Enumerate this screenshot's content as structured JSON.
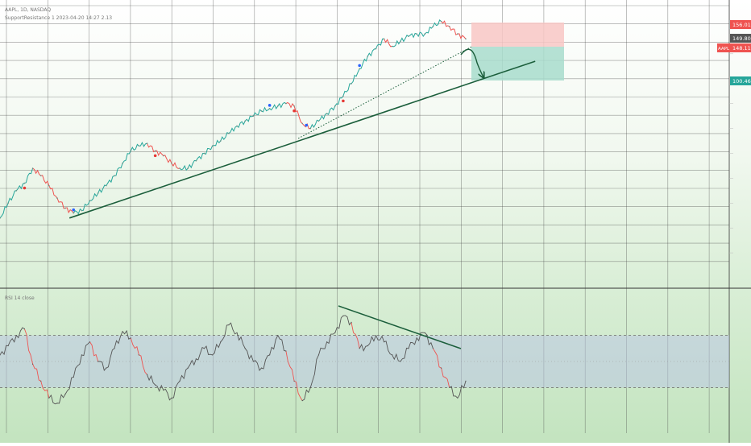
{
  "colors": {
    "up": "#26a69a",
    "down": "#ef5350",
    "trendline": "#1b5e3b",
    "stop_zone": "#f8c7c4",
    "target_zone": "#a8dccd",
    "rsi_line": "#555555",
    "rsi_band": "#b9c3e6",
    "signal_blue": "#2962ff",
    "signal_red": "#e53935"
  },
  "header": {
    "symbol_line": "AAPL, 1D, NASDAQ",
    "indicator_line": "SupportResistance 1 2023-04-20 14:27 2.13"
  },
  "price_labels": {
    "stop": "156.01",
    "entry": "149.80",
    "current_symbol": "AAPL",
    "current": "148.11",
    "target": "100.46"
  },
  "rsi_header": "RSI 14 close",
  "chart_data": [
    {
      "type": "line",
      "panel": "price",
      "ylim": [
        60,
        170
      ],
      "x": [
        0,
        10,
        20,
        30,
        40,
        50,
        60,
        70,
        80,
        90,
        100,
        110,
        120,
        130,
        140,
        150,
        160,
        170,
        180,
        190,
        200,
        210,
        220,
        230,
        240,
        250,
        260,
        270,
        280,
        290,
        300,
        310,
        320,
        330,
        340,
        350,
        360,
        370,
        380,
        390,
        400,
        410,
        420,
        430,
        440,
        450,
        460,
        470,
        480,
        490,
        500,
        510,
        520,
        530,
        540,
        550,
        560,
        570
      ],
      "values": [
        84,
        90,
        95,
        98,
        104,
        101,
        97,
        92,
        88,
        86,
        87,
        91,
        94,
        97,
        101,
        106,
        111,
        113,
        114,
        111,
        109,
        106,
        104,
        104,
        107,
        110,
        113,
        115,
        118,
        121,
        123,
        125,
        127,
        128,
        129,
        130,
        129,
        122,
        120,
        123,
        126,
        129,
        133,
        138,
        144,
        149,
        152,
        156,
        153,
        155,
        157,
        158,
        158,
        161,
        163,
        161,
        158,
        156
      ],
      "annotations": {
        "support_line": {
          "from": [
            85,
            84
          ],
          "to": [
            655,
            147
          ]
        },
        "dotted_line": {
          "from": [
            365,
            116
          ],
          "to": [
            578,
            153
          ]
        },
        "trade": {
          "stop": 156.01,
          "entry": 149.8,
          "target": 100.46
        }
      }
    },
    {
      "type": "line",
      "panel": "rsi",
      "ylim": [
        0,
        100
      ],
      "band": [
        30,
        70
      ],
      "x": [
        0,
        10,
        20,
        30,
        40,
        50,
        60,
        70,
        80,
        90,
        100,
        110,
        120,
        130,
        140,
        150,
        160,
        170,
        180,
        190,
        200,
        210,
        220,
        230,
        240,
        250,
        260,
        270,
        280,
        290,
        300,
        310,
        320,
        330,
        340,
        350,
        360,
        370,
        380,
        390,
        400,
        410,
        420,
        430,
        440,
        450,
        460,
        470,
        480,
        490,
        500,
        510,
        520,
        530,
        540,
        550,
        560,
        570
      ],
      "values": [
        55,
        62,
        70,
        75,
        48,
        35,
        22,
        18,
        25,
        38,
        55,
        65,
        50,
        45,
        60,
        73,
        68,
        55,
        40,
        32,
        28,
        22,
        35,
        45,
        52,
        60,
        55,
        65,
        78,
        72,
        60,
        50,
        45,
        55,
        70,
        58,
        35,
        20,
        30,
        55,
        65,
        72,
        85,
        80,
        60,
        62,
        70,
        65,
        55,
        50,
        60,
        68,
        72,
        60,
        45,
        30,
        22,
        35
      ]
    }
  ]
}
